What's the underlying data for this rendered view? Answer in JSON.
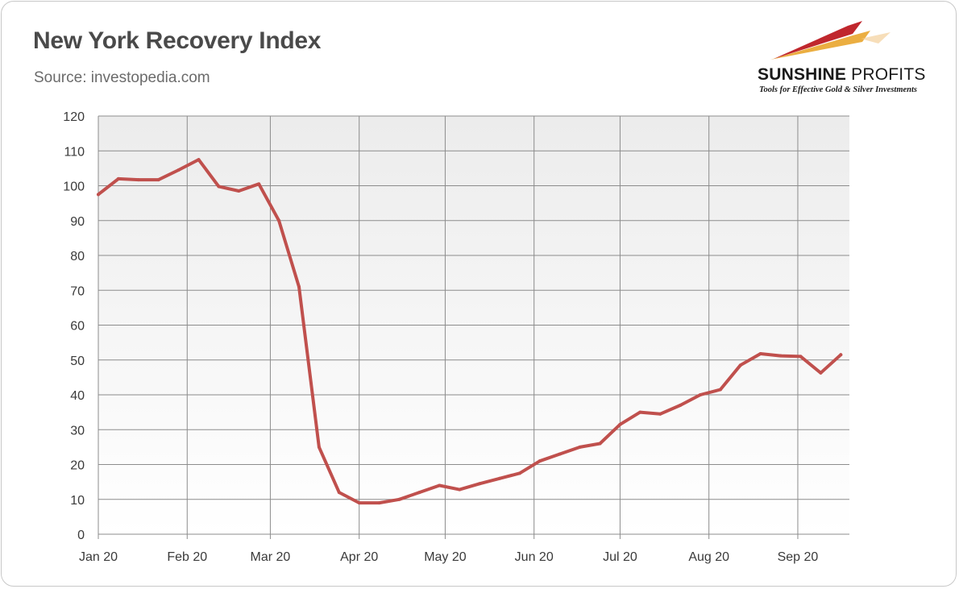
{
  "header": {
    "title": "New York Recovery Index",
    "source": "Source: investopedia.com"
  },
  "logo": {
    "name_bold": "SUNSHINE",
    "name_light": " PROFITS",
    "tagline": "Tools for Effective Gold & Silver Investments"
  },
  "colors": {
    "line": "#c0504d",
    "grid": "#8c8c8c",
    "plot_top": "#ececec",
    "plot_bottom": "#ffffff",
    "logo_red": "#c0272d",
    "logo_gold": "#e8a020"
  },
  "chart_data": {
    "type": "line",
    "title": "New York Recovery Index",
    "subtitle": "Source: investopedia.com",
    "xlabel": "",
    "ylabel": "",
    "ylim": [
      0,
      120
    ],
    "yticks": [
      0,
      10,
      20,
      30,
      40,
      50,
      60,
      70,
      80,
      90,
      100,
      110,
      120
    ],
    "xlim": [
      "2020-01-01",
      "2020-09-19"
    ],
    "xticks": [
      {
        "label": "Jan 20",
        "date": "2020-01-01"
      },
      {
        "label": "Feb 20",
        "date": "2020-02-01"
      },
      {
        "label": "Mar 20",
        "date": "2020-03-01"
      },
      {
        "label": "Apr 20",
        "date": "2020-04-01"
      },
      {
        "label": "May 20",
        "date": "2020-05-01"
      },
      {
        "label": "Jun 20",
        "date": "2020-06-01"
      },
      {
        "label": "Jul 20",
        "date": "2020-07-01"
      },
      {
        "label": "Aug 20",
        "date": "2020-08-01"
      },
      {
        "label": "Sep 20",
        "date": "2020-09-01"
      }
    ],
    "grid": true,
    "legend": "none",
    "series": [
      {
        "points": [
          [
            "2020-01-01",
            97.5
          ],
          [
            "2020-01-08",
            102
          ],
          [
            "2020-01-15",
            101.7
          ],
          [
            "2020-01-22",
            101.7
          ],
          [
            "2020-01-29",
            104.5
          ],
          [
            "2020-02-05",
            107.5
          ],
          [
            "2020-02-12",
            99.8
          ],
          [
            "2020-02-19",
            98.5
          ],
          [
            "2020-02-26",
            100.5
          ],
          [
            "2020-03-04",
            90
          ],
          [
            "2020-03-11",
            71
          ],
          [
            "2020-03-18",
            25
          ],
          [
            "2020-03-25",
            12
          ],
          [
            "2020-04-01",
            9
          ],
          [
            "2020-04-08",
            9
          ],
          [
            "2020-04-15",
            10
          ],
          [
            "2020-04-22",
            12
          ],
          [
            "2020-04-29",
            14
          ],
          [
            "2020-05-06",
            12.8
          ],
          [
            "2020-05-13",
            14.5
          ],
          [
            "2020-05-20",
            16
          ],
          [
            "2020-05-27",
            17.5
          ],
          [
            "2020-06-03",
            21
          ],
          [
            "2020-06-10",
            23
          ],
          [
            "2020-06-17",
            25
          ],
          [
            "2020-06-24",
            26
          ],
          [
            "2020-07-01",
            31.5
          ],
          [
            "2020-07-08",
            35
          ],
          [
            "2020-07-15",
            34.5
          ],
          [
            "2020-07-22",
            37
          ],
          [
            "2020-07-29",
            40
          ],
          [
            "2020-08-05",
            41.5
          ],
          [
            "2020-08-12",
            48.5
          ],
          [
            "2020-08-19",
            51.8
          ],
          [
            "2020-08-26",
            51.2
          ],
          [
            "2020-09-02",
            51
          ],
          [
            "2020-09-09",
            46.3
          ],
          [
            "2020-09-16",
            51.5
          ]
        ]
      }
    ]
  }
}
